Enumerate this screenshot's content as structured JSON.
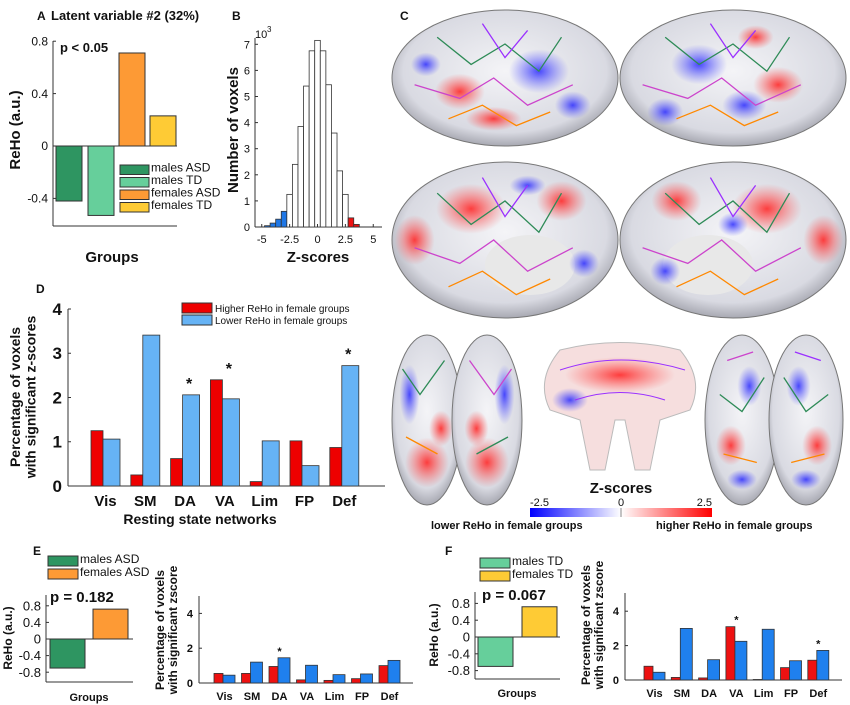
{
  "panel_c": {
    "label": "C",
    "colorbar_title": "Z-scores",
    "colorbar_ticks": [
      "-2.5",
      "0",
      "2.5"
    ],
    "left_caption": "lower ReHo in female groups",
    "right_caption": "higher ReHo in female groups",
    "colors": {
      "low": "#0000ff",
      "mid": "#ffffff",
      "high": "#ff0000"
    }
  },
  "chart_data": [
    {
      "id": "A",
      "type": "bar",
      "panel_label": "A",
      "title": "Latent variable #2 (32%)",
      "ylabel": "ReHo (a.u.)",
      "xlabel": "Groups",
      "annotation": "p < 0.05",
      "ylim": [
        -0.6,
        0.8
      ],
      "yticks": [
        0.8,
        0.4,
        0,
        -0.4
      ],
      "ytick_labels": [
        "0.8",
        "0.4",
        "0",
        "-0.4"
      ],
      "categories": [
        "males ASD",
        "males TD",
        "females ASD",
        "females TD"
      ],
      "values": [
        -0.42,
        -0.53,
        0.71,
        0.23
      ],
      "colors": [
        "#2e9561",
        "#66cf9b",
        "#fd9a35",
        "#fecb35"
      ],
      "legend": [
        "males ASD",
        "males TD",
        "females ASD",
        "females TD"
      ],
      "legend_position": "bottom-right"
    },
    {
      "id": "B",
      "type": "histogram",
      "panel_label": "B",
      "xlabel": "Z-scores",
      "ylabel": "Number of voxels",
      "y_scale_base": "10",
      "y_scale_exp": "3",
      "bin_width": 0.5,
      "bin_centers": [
        -4.5,
        -4,
        -3.5,
        -3,
        -2.5,
        -2,
        -1.5,
        -1,
        -0.5,
        0,
        0.5,
        1,
        1.5,
        2,
        2.5,
        3,
        3.5
      ],
      "values": [
        0.05,
        0.15,
        0.3,
        0.6,
        1.25,
        2.4,
        3.85,
        5.4,
        6.75,
        7.15,
        6.75,
        5.45,
        3.6,
        2.15,
        1.25,
        0.35,
        0.1
      ],
      "bar_colors": [
        "#1f77e6",
        "#1f77e6",
        "#1f77e6",
        "#1f77e6",
        "#ffffff",
        "#ffffff",
        "#ffffff",
        "#ffffff",
        "#ffffff",
        "#ffffff",
        "#ffffff",
        "#ffffff",
        "#ffffff",
        "#ffffff",
        "#ffffff",
        "#ee1111",
        "#ee1111"
      ],
      "xlim": [
        -5.5,
        5.5
      ],
      "ylim": [
        0,
        7.5
      ],
      "xticks": [
        -5,
        -2.5,
        0,
        2.5,
        5
      ],
      "xtick_labels": [
        "-5",
        "-2.5",
        "0",
        "2.5",
        "5"
      ],
      "yticks": [
        0,
        1,
        2,
        3,
        4,
        5,
        6,
        7
      ],
      "ytick_labels": [
        "0",
        "1",
        "2",
        "3",
        "4",
        "5",
        "6",
        "7"
      ]
    },
    {
      "id": "D",
      "type": "bar",
      "panel_label": "D",
      "xlabel": "Resting state networks",
      "ylabel": [
        "Percentage of voxels",
        "with significant z-scores"
      ],
      "ylim": [
        0,
        4
      ],
      "yticks": [
        0,
        1,
        2,
        3,
        4
      ],
      "ytick_labels": [
        "0",
        "1",
        "2",
        "3",
        "4"
      ],
      "categories": [
        "Vis",
        "SM",
        "DA",
        "VA",
        "Lim",
        "FP",
        "Def"
      ],
      "series": [
        {
          "name": "Higher ReHo in female groups",
          "color": "#ee0000",
          "values": [
            1.25,
            0.25,
            0.62,
            2.4,
            0.1,
            1.02,
            0.87
          ]
        },
        {
          "name": "Lower ReHo in female groups",
          "color": "#66b3f5",
          "values": [
            1.06,
            3.41,
            2.06,
            1.97,
            1.02,
            0.46,
            2.72
          ]
        }
      ],
      "significance": [
        "",
        "",
        "*",
        "*",
        "",
        "",
        "*"
      ],
      "legend_position": "top-right"
    },
    {
      "id": "E1",
      "type": "bar",
      "panel_label": "E",
      "ylabel": "ReHo (a.u.)",
      "xlabel": "Groups",
      "annotation": "p = 0.182",
      "ylim": [
        -1,
        1
      ],
      "yticks": [
        0.8,
        0.4,
        0,
        -0.4,
        -0.8
      ],
      "ytick_labels": [
        "0.8",
        "0.4",
        "0",
        "-0.4",
        "-0.8"
      ],
      "categories": [
        "males ASD",
        "females ASD"
      ],
      "values": [
        -0.7,
        0.72
      ],
      "colors": [
        "#2e9561",
        "#fd9a35"
      ],
      "legend": [
        "males ASD",
        "females ASD"
      ],
      "legend_position": "top"
    },
    {
      "id": "E2",
      "type": "bar",
      "ylabel": [
        "Percentage of voxels",
        "with significant zscore"
      ],
      "ylim": [
        0,
        5
      ],
      "yticks": [
        0,
        2,
        4
      ],
      "ytick_labels": [
        "0",
        "2",
        "4"
      ],
      "categories": [
        "Vis",
        "SM",
        "DA",
        "VA",
        "Lim",
        "FP",
        "Def"
      ],
      "series": [
        {
          "name": "Higher ReHo in female groups",
          "color": "#ee1111",
          "values": [
            0.55,
            0.55,
            0.95,
            0.18,
            0.15,
            0.25,
            1.0
          ]
        },
        {
          "name": "Lower ReHo in female groups",
          "color": "#1f80ee",
          "values": [
            0.45,
            1.2,
            1.45,
            1.02,
            0.48,
            0.52,
            1.3
          ]
        }
      ],
      "significance": [
        "",
        "",
        "*",
        "",
        "",
        "",
        ""
      ]
    },
    {
      "id": "F1",
      "type": "bar",
      "panel_label": "F",
      "ylabel": "ReHo (a.u.)",
      "xlabel": "Groups",
      "annotation": "p = 0.067",
      "ylim": [
        -1,
        1
      ],
      "yticks": [
        0.8,
        0.4,
        0,
        -0.4,
        -0.8
      ],
      "ytick_labels": [
        "0.8",
        "0.4",
        "0",
        "-0.4",
        "-0.8"
      ],
      "categories": [
        "males TD",
        "females TD"
      ],
      "values": [
        -0.7,
        0.72
      ],
      "colors": [
        "#66cf9b",
        "#fecb35"
      ],
      "legend": [
        "males TD",
        "females TD"
      ],
      "legend_position": "top"
    },
    {
      "id": "F2",
      "type": "bar",
      "ylabel": [
        "Percentage of voxels",
        "with significant zscore"
      ],
      "ylim": [
        0,
        5
      ],
      "yticks": [
        0,
        2,
        4
      ],
      "ytick_labels": [
        "0",
        "2",
        "4"
      ],
      "categories": [
        "Vis",
        "SM",
        "DA",
        "VA",
        "Lim",
        "FP",
        "Def"
      ],
      "series": [
        {
          "name": "Higher ReHo in female groups",
          "color": "#ee1111",
          "values": [
            0.8,
            0.15,
            0.12,
            3.1,
            0.03,
            0.72,
            1.15
          ]
        },
        {
          "name": "Lower ReHo in female groups",
          "color": "#1f80ee",
          "values": [
            0.45,
            3.0,
            1.18,
            2.25,
            2.95,
            1.12,
            1.72
          ]
        }
      ],
      "significance": [
        "",
        "",
        "",
        "*",
        "",
        "",
        "*"
      ]
    }
  ]
}
